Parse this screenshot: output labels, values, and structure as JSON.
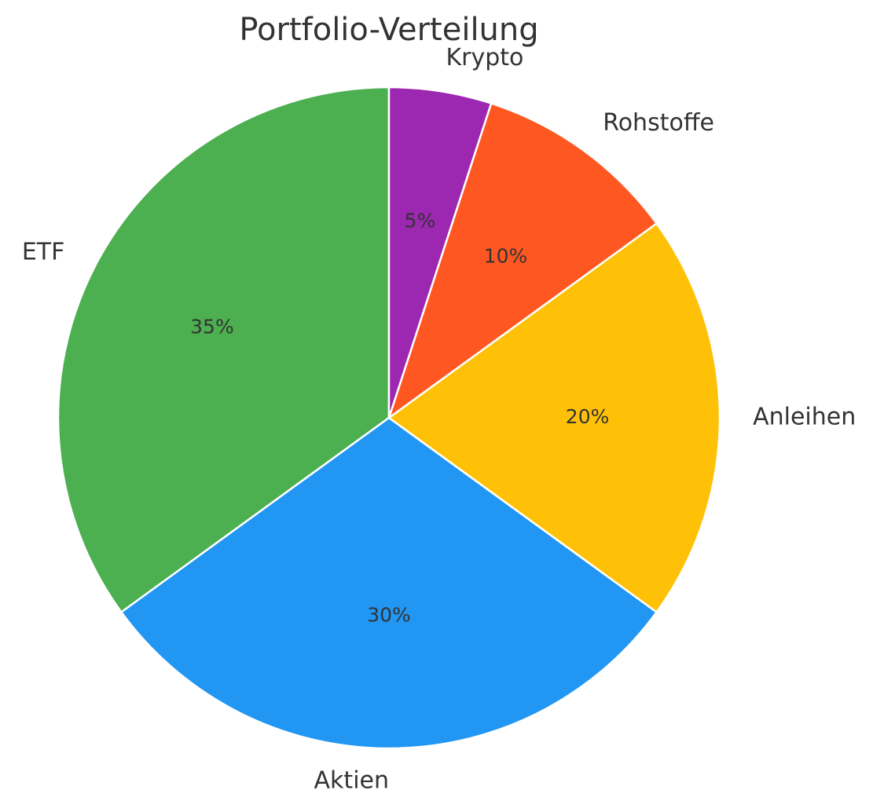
{
  "chart_data": {
    "type": "pie",
    "title": "Portfolio-Verteilung",
    "categories": [
      "ETF",
      "Aktien",
      "Anleihen",
      "Rohstoffe",
      "Krypto"
    ],
    "values": [
      35,
      30,
      20,
      10,
      5
    ],
    "value_labels": [
      "35%",
      "30%",
      "20%",
      "10%",
      "5%"
    ],
    "colors": [
      "#4caf50",
      "#2196f3",
      "#ffc107",
      "#ff5722",
      "#9c27b0"
    ]
  }
}
